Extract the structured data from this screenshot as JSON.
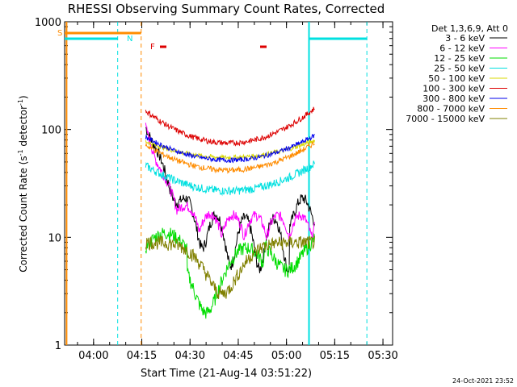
{
  "chart_data": {
    "type": "line",
    "title": "RHESSI Observing Summary Count Rates, Corrected",
    "xlabel": "Start Time (21-Aug-14 03:51:22)",
    "ylabel_main": "Corrected Count Rate (s",
    "ylabel_sup1": "-1",
    "ylabel_mid": " detector",
    "ylabel_sup2": "-1",
    "ylabel_end": ")",
    "yscale": "log",
    "ylim": [
      1,
      1000
    ],
    "xlim_minutes_after_0351": [
      0,
      102
    ],
    "xticks": [
      "04:00",
      "04:15",
      "04:30",
      "04:45",
      "05:00",
      "05:15",
      "05:30"
    ],
    "yticks": [
      "1",
      "10",
      "100",
      "1000"
    ],
    "legend_title": "Det 1,3,6,9, Att 0",
    "legend_position": "right",
    "series": [
      {
        "name": "3 - 6 keV",
        "color": "#000000"
      },
      {
        "name": "6 - 12 keV",
        "color": "#ff00ff"
      },
      {
        "name": "12 - 25 keV",
        "color": "#00dd00"
      },
      {
        "name": "25 - 50 keV",
        "color": "#00e0e0"
      },
      {
        "name": "50 - 100 keV",
        "color": "#d8d800"
      },
      {
        "name": "100 - 300 keV",
        "color": "#dd0000"
      },
      {
        "name": "300 - 800 keV",
        "color": "#0000ee"
      },
      {
        "name": "800 - 7000 keV",
        "color": "#ff8c00"
      },
      {
        "name": "7000 - 15000 keV",
        "color": "#808000"
      }
    ],
    "markers": {
      "saa_label": "S",
      "night_label": "N",
      "flare_label": "F"
    },
    "timestamp": "24-Oct-2021 23:52"
  }
}
